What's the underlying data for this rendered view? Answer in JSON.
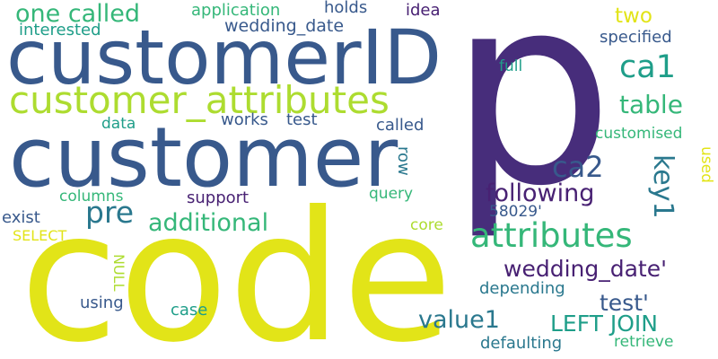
{
  "words": {
    "p": {
      "text": "p",
      "color": "#472d7b"
    },
    "code": {
      "text": "code",
      "color": "#e2e418"
    },
    "customer": {
      "text": "customer",
      "color": "#38598c"
    },
    "customerID": {
      "text": "customerID",
      "color": "#38598c"
    },
    "customer_attributes": {
      "text": "customer_attributes",
      "color": "#addc30"
    },
    "attributes": {
      "text": "attributes",
      "color": "#35b779"
    },
    "ca1": {
      "text": "ca1",
      "color": "#1f9e89"
    },
    "ca2": {
      "text": "ca2",
      "color": "#38598c"
    },
    "key1": {
      "text": "key1",
      "color": "#2a788e"
    },
    "table": {
      "text": "table",
      "color": "#35b779"
    },
    "pre": {
      "text": "pre",
      "color": "#2a788e"
    },
    "following": {
      "text": "following",
      "color": "#482173"
    },
    "additional": {
      "text": "additional",
      "color": "#35b779"
    },
    "one_called": {
      "text": "one called",
      "color": "#35b779"
    },
    "wedding_date_q": {
      "text": "wedding_date'",
      "color": "#482173"
    },
    "value1": {
      "text": "value1",
      "color": "#2a788e"
    },
    "left_join": {
      "text": "LEFT JOIN",
      "color": "#1f9e89"
    },
    "test_q": {
      "text": "test'",
      "color": "#38598c"
    },
    "two": {
      "text": "two",
      "color": "#e2e418"
    },
    "wedding_date": {
      "text": "wedding_date",
      "color": "#38598c"
    },
    "application": {
      "text": "application",
      "color": "#35b779"
    },
    "holds": {
      "text": "holds",
      "color": "#38598c"
    },
    "idea": {
      "text": "idea",
      "color": "#482173"
    },
    "interested": {
      "text": "interested",
      "color": "#1f9e89"
    },
    "specified": {
      "text": "specified",
      "color": "#38598c"
    },
    "full": {
      "text": "full",
      "color": "#1f9e89"
    },
    "works": {
      "text": "works",
      "color": "#38598c"
    },
    "test": {
      "text": "test",
      "color": "#38598c"
    },
    "data": {
      "text": "data",
      "color": "#1f9e89"
    },
    "called": {
      "text": "called",
      "color": "#38598c"
    },
    "customised": {
      "text": "customised",
      "color": "#35b779"
    },
    "row": {
      "text": "row",
      "color": "#2a788e"
    },
    "used": {
      "text": "used",
      "color": "#e2e418"
    },
    "columns": {
      "text": "columns",
      "color": "#35b779"
    },
    "support": {
      "text": "support",
      "color": "#482173"
    },
    "query": {
      "text": "query",
      "color": "#35b779"
    },
    "exist": {
      "text": "exist",
      "color": "#38598c"
    },
    "id_58029": {
      "text": "58029'",
      "color": "#38598c"
    },
    "select": {
      "text": "SELECT",
      "color": "#e2e418"
    },
    "core": {
      "text": "core",
      "color": "#addc30"
    },
    "null": {
      "text": "NULL",
      "color": "#addc30"
    },
    "depending": {
      "text": "depending",
      "color": "#2a788e"
    },
    "using": {
      "text": "using",
      "color": "#38598c"
    },
    "case": {
      "text": "case",
      "color": "#1f9e89"
    },
    "defaulting": {
      "text": "defaulting",
      "color": "#2a788e"
    },
    "retrieve": {
      "text": "retrieve",
      "color": "#35b779"
    }
  }
}
